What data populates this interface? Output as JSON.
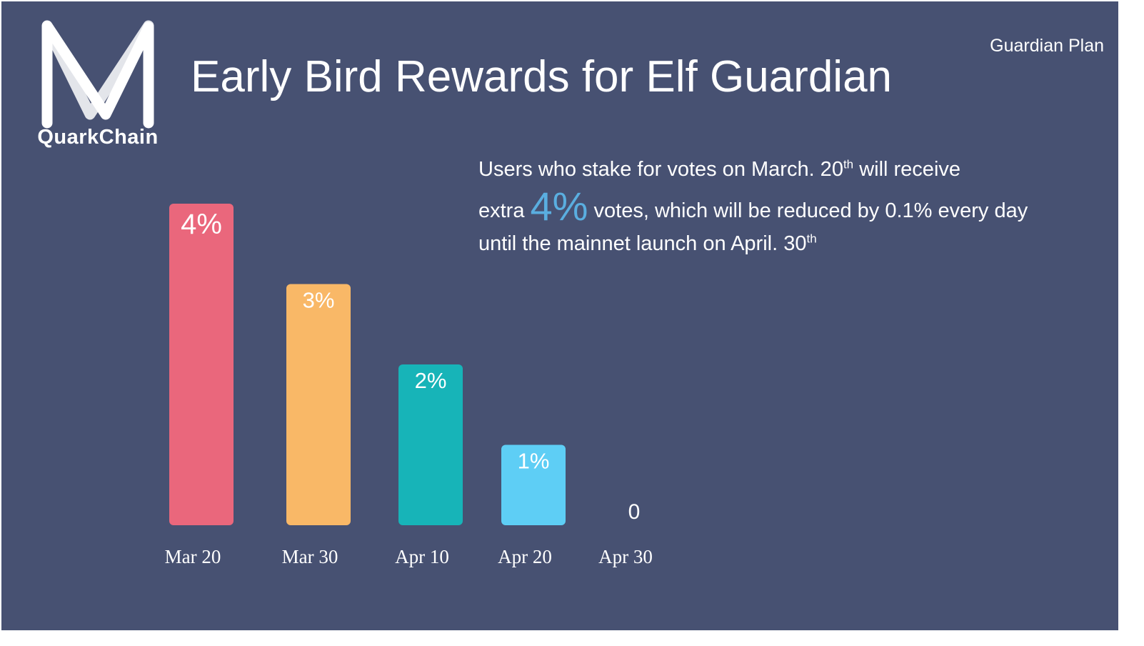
{
  "header": {
    "title": "Early Bird Rewards for Elf Guardian",
    "section_label": "Guardian Plan",
    "logo_text": "QuarkChain"
  },
  "description": {
    "line1_pre": "Users who stake for votes on March. 20",
    "line1_sup": "th",
    "line1_post": " will receive",
    "line2_pre": "extra ",
    "line2_highlight": "4%",
    "line2_post": " votes, which will be reduced by 0.1% every day",
    "line3_pre": "until the mainnet launch on April. 30",
    "line3_sup": "th"
  },
  "colors": {
    "background": "#475172",
    "highlight": "#5aaee0"
  },
  "chart_data": {
    "type": "bar",
    "categories": [
      "Mar 20",
      "Mar 30",
      "Apr 10",
      "Apr 20",
      "Apr 30"
    ],
    "values": [
      4,
      3,
      2,
      1,
      0
    ],
    "data_labels": [
      "4%",
      "3%",
      "2%",
      "1%",
      "0"
    ],
    "colors": [
      "#ea677c",
      "#f9b867",
      "#17b4b8",
      "#5ecef5",
      "#5ecef5"
    ],
    "title": "",
    "xlabel": "",
    "ylabel": "",
    "ylim": [
      0,
      4
    ],
    "grid": false,
    "legend": "none"
  }
}
